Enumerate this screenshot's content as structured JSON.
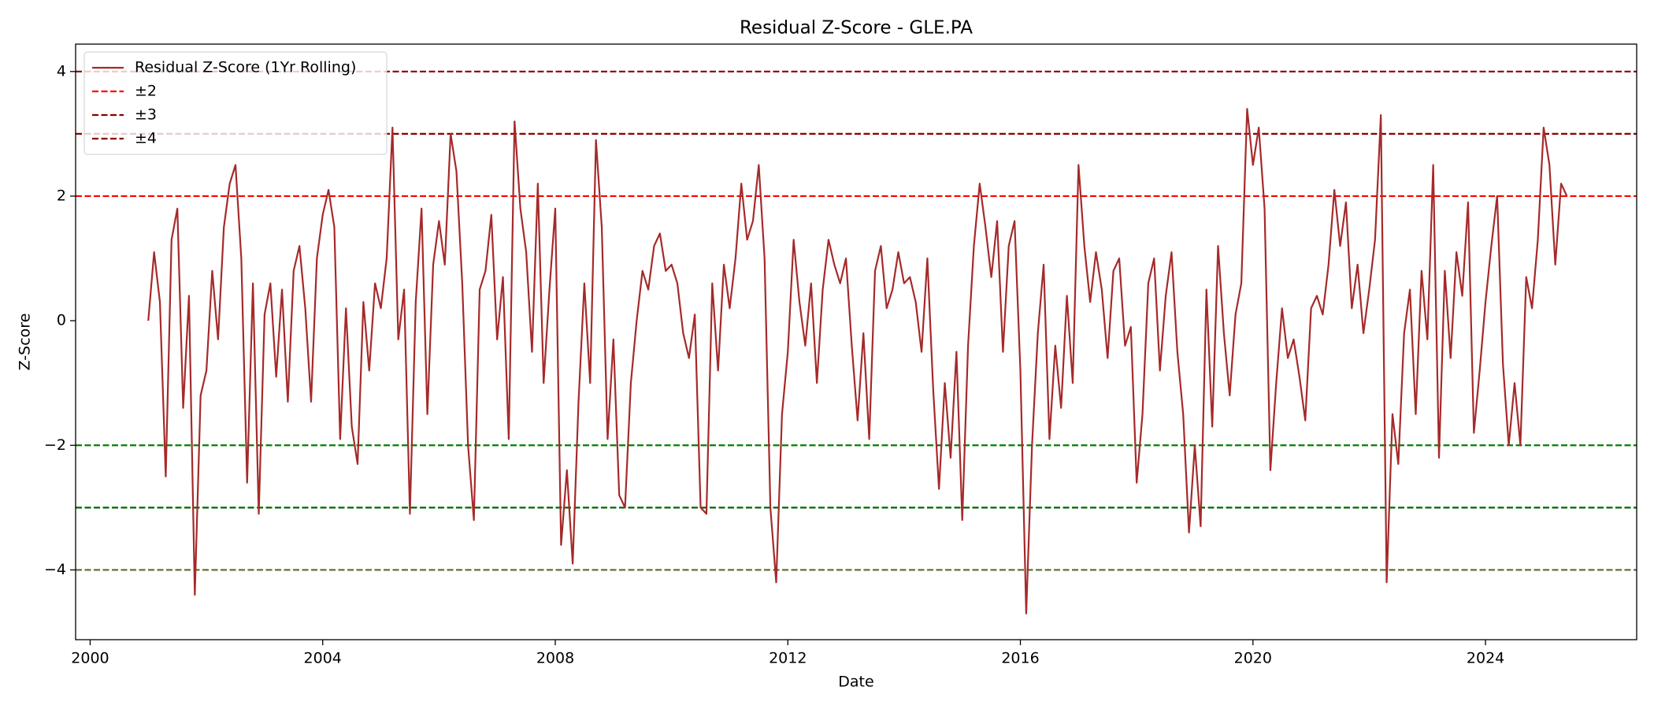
{
  "chart_data": {
    "type": "line",
    "title": "Residual Z-Score - GLE.PA",
    "xlabel": "Date",
    "ylabel": "Z-Score",
    "x": [
      2001.0,
      2001.1,
      2001.2,
      2001.3,
      2001.4,
      2001.5,
      2001.6,
      2001.7,
      2001.8,
      2001.9,
      2002.0,
      2002.1,
      2002.2,
      2002.3,
      2002.4,
      2002.5,
      2002.6,
      2002.7,
      2002.8,
      2002.9,
      2003.0,
      2003.1,
      2003.2,
      2003.3,
      2003.4,
      2003.5,
      2003.6,
      2003.7,
      2003.8,
      2003.9,
      2004.0,
      2004.1,
      2004.2,
      2004.3,
      2004.4,
      2004.5,
      2004.6,
      2004.7,
      2004.8,
      2004.9,
      2005.0,
      2005.1,
      2005.2,
      2005.3,
      2005.4,
      2005.5,
      2005.6,
      2005.7,
      2005.8,
      2005.9,
      2006.0,
      2006.1,
      2006.2,
      2006.3,
      2006.4,
      2006.5,
      2006.6,
      2006.7,
      2006.8,
      2006.9,
      2007.0,
      2007.1,
      2007.2,
      2007.3,
      2007.4,
      2007.5,
      2007.6,
      2007.7,
      2007.8,
      2007.9,
      2008.0,
      2008.1,
      2008.2,
      2008.3,
      2008.4,
      2008.5,
      2008.6,
      2008.7,
      2008.8,
      2008.9,
      2009.0,
      2009.1,
      2009.2,
      2009.3,
      2009.4,
      2009.5,
      2009.6,
      2009.7,
      2009.8,
      2009.9,
      2010.0,
      2010.1,
      2010.2,
      2010.3,
      2010.4,
      2010.5,
      2010.6,
      2010.7,
      2010.8,
      2010.9,
      2011.0,
      2011.1,
      2011.2,
      2011.3,
      2011.4,
      2011.5,
      2011.6,
      2011.7,
      2011.8,
      2011.9,
      2012.0,
      2012.1,
      2012.2,
      2012.3,
      2012.4,
      2012.5,
      2012.6,
      2012.7,
      2012.8,
      2012.9,
      2013.0,
      2013.1,
      2013.2,
      2013.3,
      2013.4,
      2013.5,
      2013.6,
      2013.7,
      2013.8,
      2013.9,
      2014.0,
      2014.1,
      2014.2,
      2014.3,
      2014.4,
      2014.5,
      2014.6,
      2014.7,
      2014.8,
      2014.9,
      2015.0,
      2015.1,
      2015.2,
      2015.3,
      2015.4,
      2015.5,
      2015.6,
      2015.7,
      2015.8,
      2015.9,
      2016.0,
      2016.1,
      2016.2,
      2016.3,
      2016.4,
      2016.5,
      2016.6,
      2016.7,
      2016.8,
      2016.9,
      2017.0,
      2017.1,
      2017.2,
      2017.3,
      2017.4,
      2017.5,
      2017.6,
      2017.7,
      2017.8,
      2017.9,
      2018.0,
      2018.1,
      2018.2,
      2018.3,
      2018.4,
      2018.5,
      2018.6,
      2018.7,
      2018.8,
      2018.9,
      2019.0,
      2019.1,
      2019.2,
      2019.3,
      2019.4,
      2019.5,
      2019.6,
      2019.7,
      2019.8,
      2019.9,
      2020.0,
      2020.1,
      2020.2,
      2020.3,
      2020.4,
      2020.5,
      2020.6,
      2020.7,
      2020.8,
      2020.9,
      2021.0,
      2021.1,
      2021.2,
      2021.3,
      2021.4,
      2021.5,
      2021.6,
      2021.7,
      2021.8,
      2021.9,
      2022.0,
      2022.1,
      2022.2,
      2022.3,
      2022.4,
      2022.5,
      2022.6,
      2022.7,
      2022.8,
      2022.9,
      2023.0,
      2023.1,
      2023.2,
      2023.3,
      2023.4,
      2023.5,
      2023.6,
      2023.7,
      2023.8,
      2023.9,
      2024.0,
      2024.1,
      2024.2,
      2024.3,
      2024.4,
      2024.5,
      2024.6,
      2024.7,
      2024.8,
      2024.9,
      2025.0,
      2025.1,
      2025.2,
      2025.3,
      2025.4
    ],
    "series": [
      {
        "name": "Residual Z-Score (1Yr Rolling)",
        "color": "#a52a2a",
        "values": [
          0,
          1.1,
          0.3,
          -2.5,
          1.3,
          1.8,
          -1.4,
          0.4,
          -4.4,
          -1.2,
          -0.8,
          0.8,
          -0.3,
          1.5,
          2.2,
          2.5,
          1.0,
          -2.6,
          0.6,
          -3.1,
          0.1,
          0.6,
          -0.9,
          0.5,
          -1.3,
          0.8,
          1.2,
          0.2,
          -1.3,
          1.0,
          1.7,
          2.1,
          1.5,
          -1.9,
          0.2,
          -1.7,
          -2.3,
          0.3,
          -0.8,
          0.6,
          0.2,
          1.0,
          3.1,
          -0.3,
          0.5,
          -3.1,
          0.3,
          1.8,
          -1.5,
          0.9,
          1.6,
          0.9,
          3.0,
          2.4,
          0.6,
          -2.0,
          -3.2,
          0.5,
          0.8,
          1.7,
          -0.3,
          0.7,
          -1.9,
          3.2,
          1.8,
          1.1,
          -0.5,
          2.2,
          -1.0,
          0.5,
          1.8,
          -3.6,
          -2.4,
          -3.9,
          -1.3,
          0.6,
          -1.0,
          2.9,
          1.5,
          -1.9,
          -0.3,
          -2.8,
          -3.0,
          -1.0,
          0.0,
          0.8,
          0.5,
          1.2,
          1.4,
          0.8,
          0.9,
          0.6,
          -0.2,
          -0.6,
          0.1,
          -3.0,
          -3.1,
          0.6,
          -0.8,
          0.9,
          0.2,
          1.0,
          2.2,
          1.3,
          1.6,
          2.5,
          1.0,
          -3.0,
          -4.2,
          -1.5,
          -0.5,
          1.3,
          0.3,
          -0.4,
          0.6,
          -1.0,
          0.5,
          1.3,
          0.9,
          0.6,
          1.0,
          -0.4,
          -1.6,
          -0.2,
          -1.9,
          0.8,
          1.2,
          0.2,
          0.5,
          1.1,
          0.6,
          0.7,
          0.3,
          -0.5,
          1.0,
          -1.1,
          -2.7,
          -1.0,
          -2.2,
          -0.5,
          -3.2,
          -0.4,
          1.2,
          2.2,
          1.5,
          0.7,
          1.6,
          -0.5,
          1.2,
          1.6,
          -0.8,
          -4.7,
          -2.0,
          -0.2,
          0.9,
          -1.9,
          -0.4,
          -1.4,
          0.4,
          -1.0,
          2.5,
          1.2,
          0.3,
          1.1,
          0.5,
          -0.6,
          0.8,
          1.0,
          -0.4,
          -0.1,
          -2.6,
          -1.5,
          0.6,
          1.0,
          -0.8,
          0.4,
          1.1,
          -0.5,
          -1.5,
          -3.4,
          -2.0,
          -3.3,
          0.5,
          -1.7,
          1.2,
          -0.2,
          -1.2,
          0.1,
          0.6,
          3.4,
          2.5,
          3.1,
          1.8,
          -2.4,
          -1.0,
          0.2,
          -0.6,
          -0.3,
          -0.9,
          -1.6,
          0.2,
          0.4,
          0.1,
          0.9,
          2.1,
          1.2,
          1.9,
          0.2,
          0.9,
          -0.2,
          0.5,
          1.3,
          3.3,
          -4.2,
          -1.5,
          -2.3,
          -0.2,
          0.5,
          -1.5,
          0.8,
          -0.3,
          2.5,
          -2.2,
          0.8,
          -0.6,
          1.1,
          0.4,
          1.9,
          -1.8,
          -0.8,
          0.3,
          1.2,
          2.0,
          -0.7,
          -2.0,
          -1.0,
          -2.0,
          0.7,
          0.2,
          1.3,
          3.1,
          2.5,
          0.9,
          2.2,
          2.0
        ]
      }
    ],
    "reference_lines": [
      {
        "name": "±2",
        "values": [
          2,
          -2
        ],
        "colors": [
          "#ff0000",
          "#008000"
        ]
      },
      {
        "name": "±3",
        "values": [
          3,
          -3
        ],
        "colors": [
          "#8b0000",
          "#006400"
        ]
      },
      {
        "name": "±4",
        "values": [
          4,
          -4
        ],
        "colors": [
          "#8b0000",
          "#556b2f"
        ]
      }
    ],
    "xlim": [
      1999.75,
      2026.6
    ],
    "xticks": [
      2000,
      2004,
      2008,
      2012,
      2016,
      2020,
      2024
    ],
    "ylim": [
      -5.12,
      4.44
    ],
    "yticks": [
      {
        "value": -4,
        "label": "−4"
      },
      {
        "value": -2,
        "label": "−2"
      },
      0,
      2,
      4
    ],
    "grid": false,
    "legend": "upper left"
  }
}
